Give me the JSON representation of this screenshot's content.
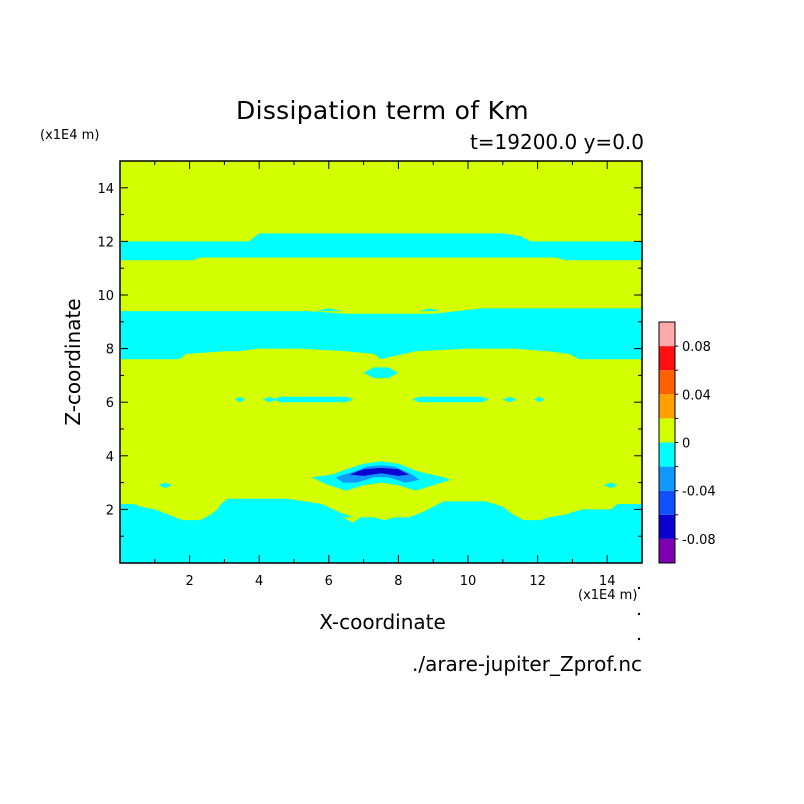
{
  "chart_data": {
    "type": "heatmap",
    "title": "Dissipation term of Km",
    "subtitle": "t=19200.0 y=0.0",
    "xlabel": "X-coordinate",
    "ylabel": "Z-coordinate",
    "x_unit": "(x1E4 m)",
    "y_unit": "(x1E4 m)",
    "source": "./arare-jupiter_Zprof.nc",
    "xlim": [
      0,
      15
    ],
    "ylim": [
      0,
      15
    ],
    "x_ticks": [
      "2",
      "4",
      "6",
      "8",
      "10",
      "12",
      "14"
    ],
    "y_ticks": [
      "2",
      "4",
      "6",
      "8",
      "10",
      "12",
      "14"
    ],
    "colorbar": {
      "levels": [
        -0.1,
        -0.08,
        -0.06,
        -0.04,
        -0.02,
        0,
        0.02,
        0.04,
        0.06,
        0.08,
        0.1
      ],
      "labels": [
        "0.08",
        "0.04",
        "0",
        "-0.04",
        "-0.08"
      ],
      "colors": [
        "#7f00b0",
        "#0a00d0",
        "#1050ff",
        "#1098ff",
        "#00ffff",
        "#d4ff00",
        "#ffa000",
        "#ff6000",
        "#ff1010",
        "#ffaaaa"
      ]
    },
    "background_value_range": [
      0,
      0.02
    ],
    "regions": [
      {
        "value_range": [
          -0.02,
          0
        ],
        "z_band": [
          0,
          2.3
        ],
        "note": "lower layer, irregular top edge"
      },
      {
        "value_range": [
          -0.02,
          0
        ],
        "z_band": [
          7.6,
          9.5
        ]
      },
      {
        "value_range": [
          -0.02,
          0
        ],
        "z_band": [
          11.3,
          12.3
        ]
      },
      {
        "value_range": [
          -0.02,
          0
        ],
        "z_band": [
          6.0,
          6.2
        ],
        "note": "thin patches"
      },
      {
        "value_range": [
          -0.02,
          0
        ],
        "z_band": [
          7.0,
          7.3
        ],
        "note": "small patch near x=7.5"
      },
      {
        "value_range": [
          -0.1,
          -0.02
        ],
        "x_center": 7.5,
        "z_center": 3.4,
        "note": "arc-shaped minimum"
      }
    ]
  }
}
